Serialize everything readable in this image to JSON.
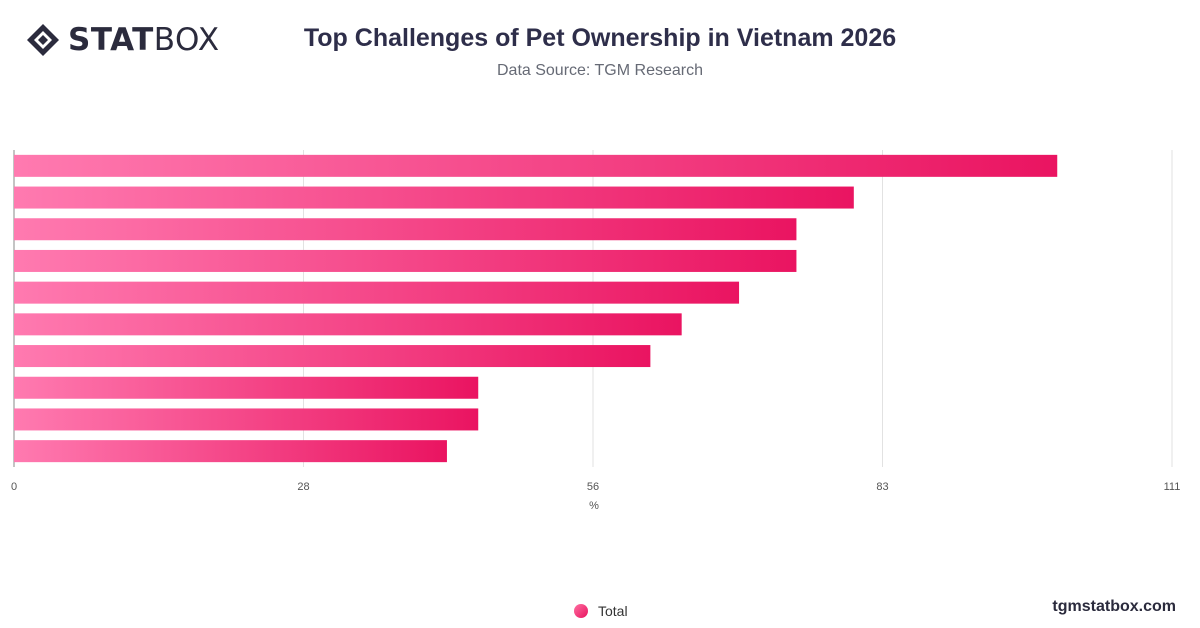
{
  "brand": {
    "logo_bold": "STAT",
    "logo_light": "BOX",
    "footer_site": "tgmstatbox.com"
  },
  "chart_data": {
    "type": "bar",
    "orientation": "horizontal",
    "title": "Top Challenges of Pet Ownership in Vietnam 2026",
    "subtitle": "Data Source: TGM Research",
    "xlabel": "%",
    "xlim": [
      0,
      111
    ],
    "x_ticks": [
      "0",
      "28",
      "56",
      "83",
      "111"
    ],
    "categories": [
      "",
      "",
      "",
      "",
      "",
      "",
      "",
      "",
      "",
      ""
    ],
    "series": [
      {
        "name": "Total",
        "values": [
          100,
          80.5,
          75,
          75,
          69.5,
          64,
          61,
          44.5,
          44.5,
          41.5
        ]
      }
    ],
    "grid": true,
    "legend_position": "bottom-center",
    "colors": {
      "bar_start": "#ff7ab0",
      "bar_end": "#ea1461"
    }
  }
}
